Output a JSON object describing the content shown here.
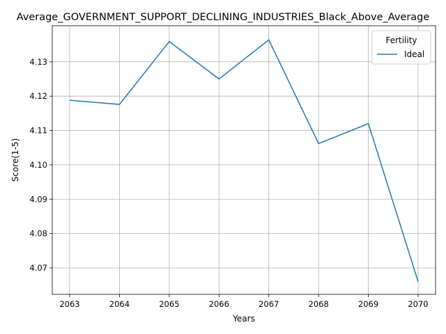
{
  "chart_data": {
    "type": "line",
    "title": "Average_GOVERNMENT_SUPPORT_DECLINING_INDUSTRIES_Black_Above_Average",
    "xlabel": "Years",
    "ylabel": "Score(1-5)",
    "x": [
      2063,
      2064,
      2065,
      2066,
      2067,
      2068,
      2069,
      2070
    ],
    "xticks": [
      "2063",
      "2064",
      "2065",
      "2066",
      "2067",
      "2068",
      "2069",
      "2070"
    ],
    "yticks": [
      "4.07",
      "4.08",
      "4.09",
      "4.10",
      "4.11",
      "4.12",
      "4.13"
    ],
    "ylim": [
      4.0623,
      4.1405
    ],
    "grid": true,
    "legend": {
      "title": "Fertility",
      "position": "top-right"
    },
    "series": [
      {
        "name": "Ideal",
        "color": "#1f77b4",
        "values": [
          4.1188,
          4.1176,
          4.1359,
          4.125,
          4.1364,
          4.1062,
          4.112,
          4.066
        ]
      }
    ]
  }
}
